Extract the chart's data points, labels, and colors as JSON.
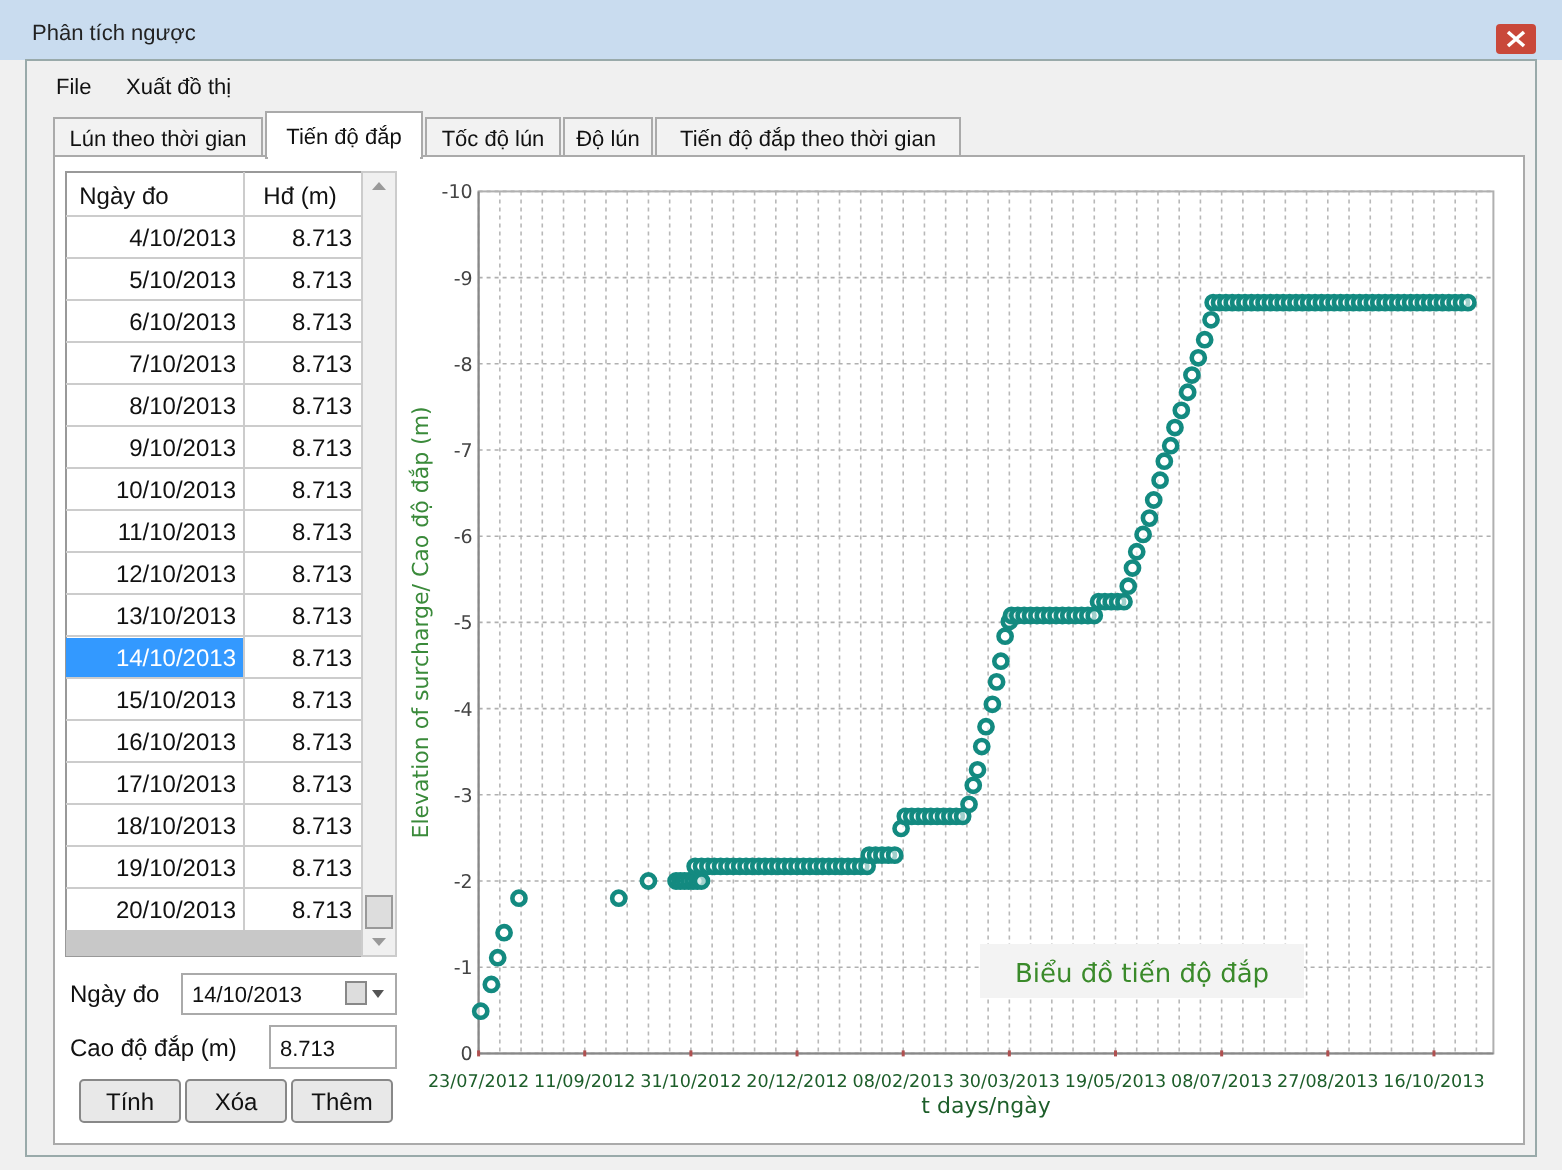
{
  "chart_data": [
    {
      "type": "other",
      "annotations": [
        "Phân tích ngược",
        "File",
        "Xuất đồ thị",
        "Lún theo thời gian",
        "Tiến độ đắp",
        "Tốc độ lún",
        "Độ lún",
        "Tiến độ đắp theo thời gian",
        "Ngày đo",
        "14/10/2013",
        "Cao độ đắp (m)",
        "8.713",
        "Tính",
        "Xóa",
        "Thêm"
      ],
      "xlabel": "Ngày đo",
      "ylabel": "Hđ (m)",
      "data_labels": true,
      "categories": [
        "4/10/2013",
        "5/10/2013",
        "6/10/2013",
        "7/10/2013",
        "8/10/2013",
        "9/10/2013",
        "10/10/2013",
        "11/10/2013",
        "12/10/2013",
        "13/10/2013",
        "14/10/2013",
        "15/10/2013",
        "16/10/2013",
        "17/10/2013",
        "18/10/2013",
        "19/10/2013",
        "20/10/2013"
      ],
      "values": [
        8.713,
        8.713,
        8.713,
        8.713,
        8.713,
        8.713,
        8.713,
        8.713,
        8.713,
        8.713,
        8.713,
        8.713,
        8.713,
        8.713,
        8.713,
        8.713,
        8.713
      ]
    },
    {
      "type": "scatter",
      "title": "Biểu đồ tiến độ đắp",
      "xlabel": "t days/ngày",
      "ylabel": "Elevation of surcharge/ Cao độ đắp (m)",
      "grid": true,
      "marker": "circle",
      "xlim": [
        "2012-07-23",
        "2013-11-13"
      ],
      "xticks": [
        {
          "value": "2012-07-23",
          "label": "23/07/2012"
        },
        {
          "value": "2012-09-11",
          "label": "11/09/2012"
        },
        {
          "value": "2012-10-31",
          "label": "31/10/2012"
        },
        {
          "value": "2012-12-20",
          "label": "20/12/2012"
        },
        {
          "value": "2013-02-08",
          "label": "08/02/2013"
        },
        {
          "value": "2013-03-30",
          "label": "30/03/2013"
        },
        {
          "value": "2013-05-19",
          "label": "19/05/2013"
        },
        {
          "value": "2013-07-08",
          "label": "08/07/2013"
        },
        {
          "value": "2013-08-27",
          "label": "27/08/2013"
        },
        {
          "value": "2013-10-16",
          "label": "16/10/2013"
        }
      ],
      "ylim": [
        0,
        -10
      ],
      "yticks": [
        0,
        -1,
        -2,
        -3,
        -4,
        -5,
        -6,
        -7,
        -8,
        -9,
        -10
      ],
      "x": [
        "2012-07-24",
        "2012-07-29",
        "2012-08-01",
        "2012-08-04",
        "2012-08-11",
        "2012-09-27",
        "2012-10-11",
        "2012-10-24",
        "2012-10-26",
        "2012-10-28",
        "2012-10-30",
        "2012-11-01",
        "2012-11-03",
        "2012-11-05",
        "2012-11-02",
        "2012-11-05",
        "2012-11-08",
        "2012-11-11",
        "2012-11-14",
        "2012-11-17",
        "2012-11-20",
        "2012-11-23",
        "2012-11-26",
        "2012-11-29",
        "2012-12-02",
        "2012-12-05",
        "2012-12-08",
        "2012-12-11",
        "2012-12-14",
        "2012-12-17",
        "2012-12-20",
        "2012-12-23",
        "2012-12-26",
        "2012-12-29",
        "2013-01-01",
        "2013-01-04",
        "2013-01-07",
        "2013-01-10",
        "2013-01-13",
        "2013-01-16",
        "2013-01-19",
        "2013-01-22",
        "2013-01-23",
        "2013-01-26",
        "2013-01-29",
        "2013-02-01",
        "2013-02-04",
        "2013-02-07",
        "2013-02-09",
        "2013-02-12",
        "2013-02-15",
        "2013-02-18",
        "2013-02-21",
        "2013-02-24",
        "2013-02-27",
        "2013-03-02",
        "2013-03-05",
        "2013-03-08",
        "2013-03-11",
        "2013-03-13",
        "2013-03-15",
        "2013-03-17",
        "2013-03-19",
        "2013-03-22",
        "2013-03-24",
        "2013-03-26",
        "2013-03-28",
        "2013-03-30",
        "2013-03-31",
        "2013-04-03",
        "2013-04-06",
        "2013-04-09",
        "2013-04-12",
        "2013-04-15",
        "2013-04-18",
        "2013-04-21",
        "2013-04-24",
        "2013-04-27",
        "2013-04-30",
        "2013-05-03",
        "2013-05-06",
        "2013-05-09",
        "2013-05-11",
        "2013-05-14",
        "2013-05-17",
        "2013-05-20",
        "2013-05-23",
        "2013-05-25",
        "2013-05-27",
        "2013-05-29",
        "2013-06-01",
        "2013-06-04",
        "2013-06-06",
        "2013-06-09",
        "2013-06-11",
        "2013-06-14",
        "2013-06-16",
        "2013-06-19",
        "2013-06-22",
        "2013-06-24",
        "2013-06-27",
        "2013-06-30",
        "2013-07-03",
        "2013-07-04",
        "2013-07-07",
        "2013-07-10",
        "2013-07-13",
        "2013-07-16",
        "2013-07-19",
        "2013-07-22",
        "2013-07-25",
        "2013-07-28",
        "2013-07-31",
        "2013-08-03",
        "2013-08-06",
        "2013-08-09",
        "2013-08-12",
        "2013-08-15",
        "2013-08-18",
        "2013-08-21",
        "2013-08-24",
        "2013-08-27",
        "2013-08-30",
        "2013-09-02",
        "2013-09-05",
        "2013-09-08",
        "2013-09-11",
        "2013-09-14",
        "2013-09-17",
        "2013-09-20",
        "2013-09-23",
        "2013-09-26",
        "2013-09-29",
        "2013-10-02",
        "2013-10-05",
        "2013-10-08",
        "2013-10-11",
        "2013-10-14",
        "2013-10-17",
        "2013-10-20",
        "2013-10-23",
        "2013-10-26",
        "2013-10-29",
        "2013-11-01"
      ],
      "series": [
        {
          "color": "#138a80",
          "values": [
            -0.49,
            -0.8,
            -1.11,
            -1.4,
            -1.8,
            -1.8,
            -2,
            -2,
            -2,
            -2,
            -2,
            -2,
            -2,
            -2,
            -2.17,
            -2.17,
            -2.17,
            -2.17,
            -2.17,
            -2.17,
            -2.17,
            -2.17,
            -2.17,
            -2.17,
            -2.17,
            -2.17,
            -2.17,
            -2.17,
            -2.17,
            -2.17,
            -2.17,
            -2.17,
            -2.17,
            -2.17,
            -2.17,
            -2.17,
            -2.17,
            -2.17,
            -2.17,
            -2.17,
            -2.17,
            -2.17,
            -2.3,
            -2.3,
            -2.3,
            -2.3,
            -2.3,
            -2.61,
            -2.75,
            -2.75,
            -2.75,
            -2.75,
            -2.75,
            -2.75,
            -2.75,
            -2.75,
            -2.75,
            -2.75,
            -2.89,
            -3.11,
            -3.29,
            -3.56,
            -3.79,
            -4.05,
            -4.31,
            -4.55,
            -4.84,
            -5.01,
            -5.08,
            -5.08,
            -5.08,
            -5.08,
            -5.08,
            -5.08,
            -5.08,
            -5.08,
            -5.08,
            -5.08,
            -5.08,
            -5.08,
            -5.08,
            -5.08,
            -5.24,
            -5.24,
            -5.24,
            -5.24,
            -5.24,
            -5.42,
            -5.63,
            -5.82,
            -6.02,
            -6.21,
            -6.42,
            -6.65,
            -6.87,
            -7.05,
            -7.26,
            -7.46,
            -7.67,
            -7.87,
            -8.07,
            -8.28,
            -8.51,
            -8.71,
            -8.71,
            -8.71,
            -8.71,
            -8.71,
            -8.71,
            -8.71,
            -8.71,
            -8.71,
            -8.71,
            -8.71,
            -8.71,
            -8.71,
            -8.71,
            -8.71,
            -8.71,
            -8.71,
            -8.71,
            -8.71,
            -8.71,
            -8.71,
            -8.71,
            -8.71,
            -8.71,
            -8.71,
            -8.71,
            -8.71,
            -8.71,
            -8.71,
            -8.71,
            -8.71,
            -8.71,
            -8.71,
            -8.71,
            -8.71,
            -8.71,
            -8.71,
            -8.71,
            -8.71,
            -8.71,
            -8.71
          ]
        }
      ]
    }
  ]
}
